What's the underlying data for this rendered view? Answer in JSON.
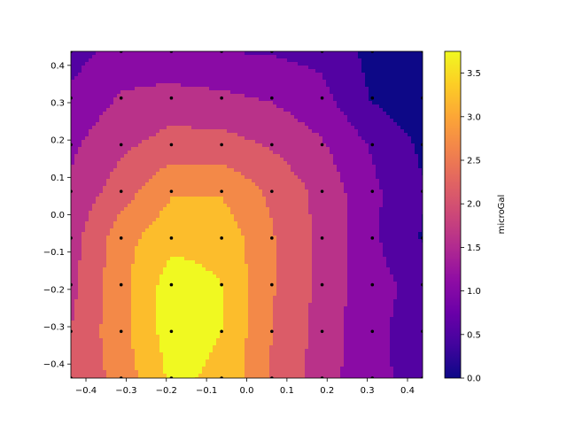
{
  "chart_data": {
    "type": "heatmap",
    "subtype": "filled-contour",
    "colormap": "plasma",
    "title": "",
    "xlabel": "",
    "ylabel": "",
    "xlim": [
      -0.4375,
      0.4375
    ],
    "ylim": [
      -0.4375,
      0.4375
    ],
    "x_ticks": [
      -0.4,
      -0.3,
      -0.2,
      -0.1,
      0.0,
      0.1,
      0.2,
      0.3,
      0.4
    ],
    "x_tick_labels": [
      "−0.4",
      "−0.3",
      "−0.2",
      "−0.1",
      "0.0",
      "0.1",
      "0.2",
      "0.3",
      "0.4"
    ],
    "y_ticks": [
      -0.4,
      -0.3,
      -0.2,
      -0.1,
      0.0,
      0.1,
      0.2,
      0.3,
      0.4
    ],
    "y_tick_labels": [
      "−0.4",
      "−0.3",
      "−0.2",
      "−0.1",
      "0.0",
      "0.1",
      "0.2",
      "0.3",
      "0.4"
    ],
    "grid": false,
    "grid_x": [
      -0.4375,
      -0.3125,
      -0.1875,
      -0.0625,
      0.0625,
      0.1875,
      0.3125,
      0.4375
    ],
    "grid_y": [
      -0.4375,
      -0.3125,
      -0.1875,
      -0.0625,
      0.0625,
      0.1875,
      0.3125,
      0.4375
    ],
    "z_rows_top_to_bottom": [
      [
        0.8,
        1.2,
        1.05,
        1.0,
        0.95,
        0.85,
        0.35,
        0.1
      ],
      [
        1.1,
        1.55,
        1.7,
        1.6,
        1.45,
        1.15,
        0.45,
        0.15
      ],
      [
        1.4,
        1.9,
        2.2,
        2.2,
        1.95,
        1.55,
        0.95,
        0.4
      ],
      [
        1.6,
        2.25,
        2.95,
        2.95,
        2.4,
        1.85,
        1.1,
        0.55
      ],
      [
        1.8,
        2.8,
        3.35,
        3.35,
        2.55,
        1.85,
        1.1,
        0.45
      ],
      [
        1.85,
        2.85,
        3.75,
        3.5,
        2.55,
        1.85,
        1.15,
        0.85
      ],
      [
        2.0,
        2.85,
        3.75,
        3.5,
        2.5,
        1.8,
        1.1,
        0.8
      ],
      [
        2.05,
        2.7,
        3.6,
        3.4,
        2.45,
        1.75,
        1.1,
        0.85
      ]
    ],
    "contour_levels": [
      0.0,
      0.5,
      1.0,
      1.5,
      2.0,
      2.5,
      3.0,
      3.5,
      4.0
    ],
    "colorbar": {
      "label": "microGal",
      "range": [
        0.0,
        3.75
      ],
      "ticks": [
        0.0,
        0.5,
        1.0,
        1.5,
        2.0,
        2.5,
        3.0,
        3.5
      ],
      "tick_labels": [
        "0.0",
        "0.5",
        "1.0",
        "1.5",
        "2.0",
        "2.5",
        "3.0",
        "3.5"
      ]
    },
    "markers": "black dots at each grid sample point"
  }
}
